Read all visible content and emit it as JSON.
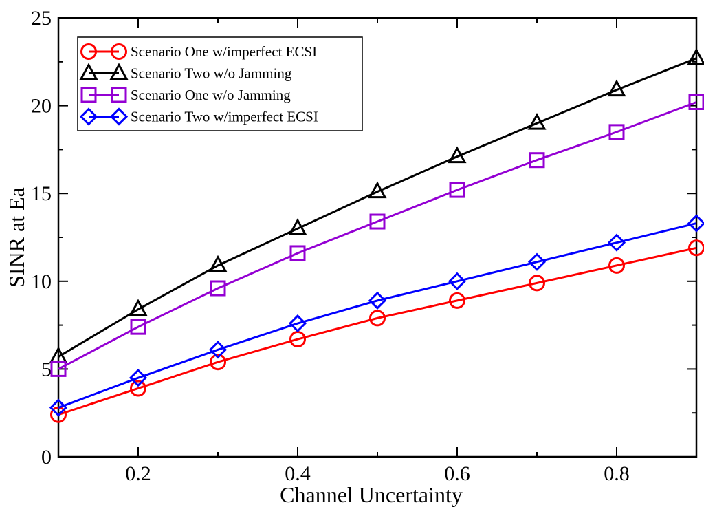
{
  "chart_data": {
    "type": "line",
    "title": "",
    "xlabel": "Channel Uncertainty",
    "ylabel": "SINR at Ea",
    "xlim": [
      0.1,
      0.9
    ],
    "ylim": [
      0,
      25
    ],
    "x_ticks": [
      0.2,
      0.4,
      0.6,
      0.8
    ],
    "x_tick_labels": [
      "0.2",
      "0.4",
      "0.6",
      "0.8"
    ],
    "y_ticks": [
      0,
      5,
      10,
      15,
      20,
      25
    ],
    "y_tick_labels": [
      "0",
      "5",
      "10",
      "15",
      "20",
      "25"
    ],
    "grid": false,
    "legend_position": "top-left",
    "x": [
      0.1,
      0.2,
      0.3,
      0.4,
      0.5,
      0.6,
      0.7,
      0.8,
      0.9
    ],
    "series": [
      {
        "name": "Scenario One w/imperfect ECSI",
        "color": "#ff0000",
        "marker": "circle",
        "values": [
          2.4,
          3.9,
          5.4,
          6.7,
          7.9,
          8.9,
          9.9,
          10.9,
          11.9
        ]
      },
      {
        "name": "Scenario Two w/o Jamming",
        "color": "#000000",
        "marker": "triangle",
        "values": [
          5.7,
          8.4,
          10.9,
          13.0,
          15.1,
          17.1,
          19.0,
          20.9,
          22.7
        ]
      },
      {
        "name": "Scenario One w/o Jamming",
        "color": "#9400d3",
        "marker": "square",
        "values": [
          5.0,
          7.4,
          9.6,
          11.6,
          13.4,
          15.2,
          16.9,
          18.5,
          20.2
        ]
      },
      {
        "name": "Scenario Two w/imperfect ECSI",
        "color": "#0000ff",
        "marker": "diamond",
        "values": [
          2.8,
          4.5,
          6.1,
          7.6,
          8.9,
          10.0,
          11.1,
          12.2,
          13.3
        ]
      }
    ]
  }
}
